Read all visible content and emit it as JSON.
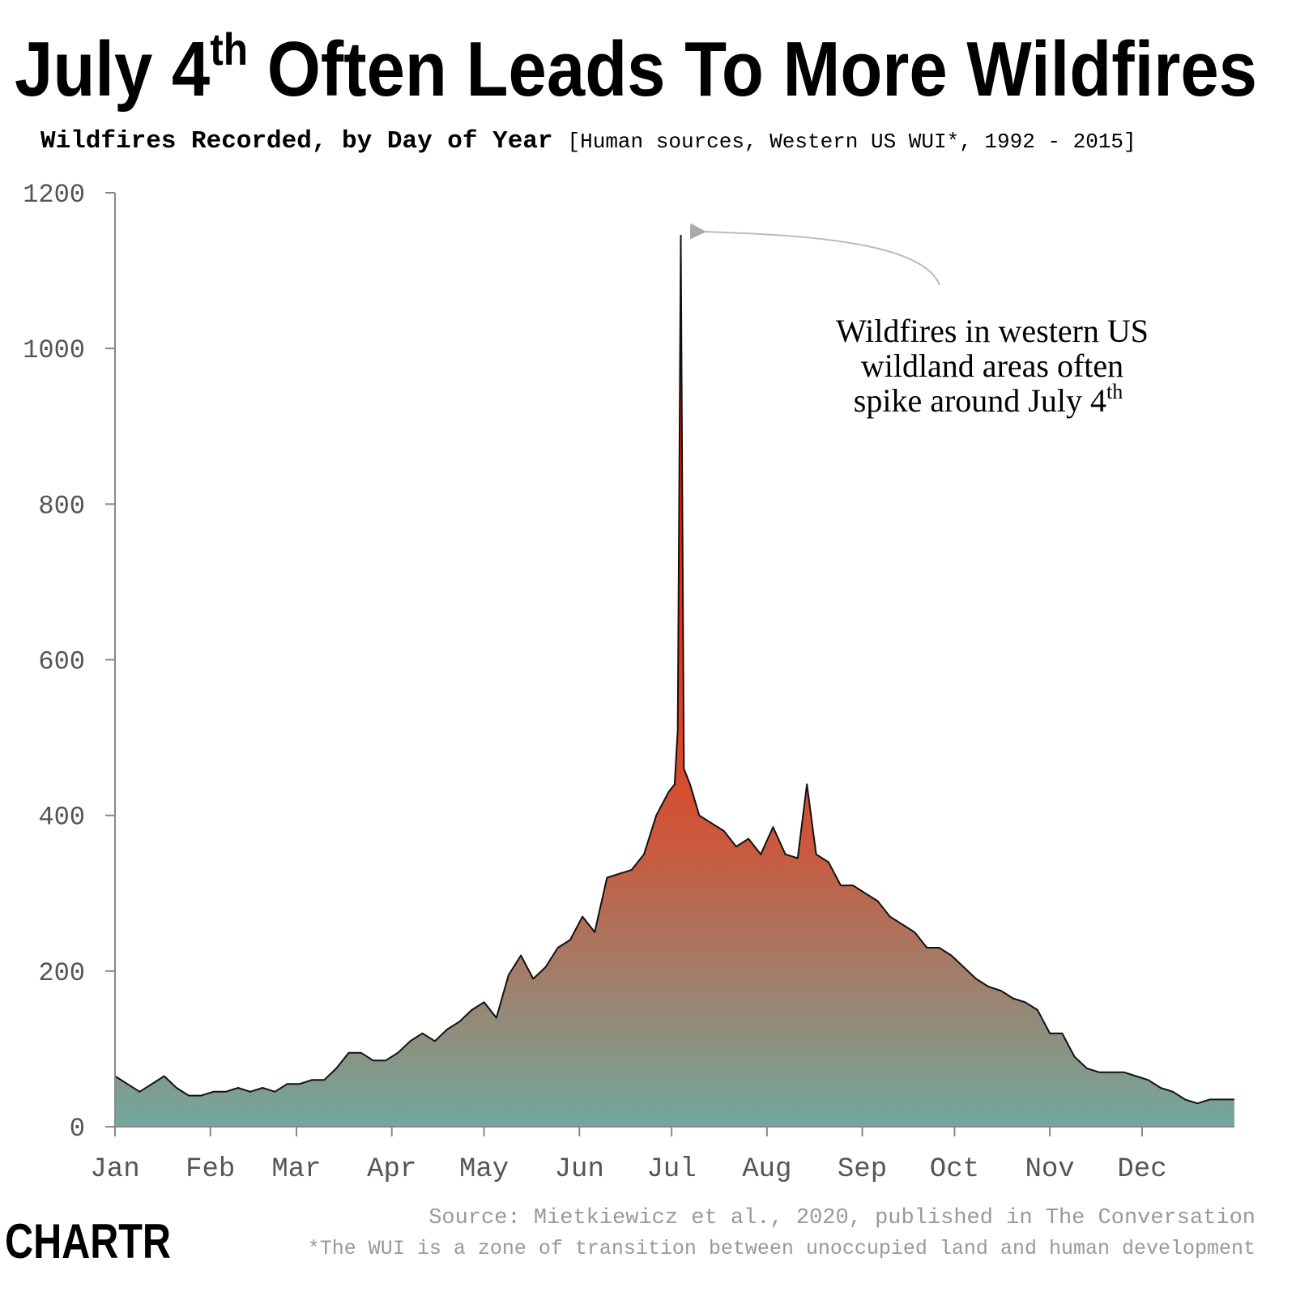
{
  "chart_data": {
    "type": "area",
    "title": [
      "July 4",
      "th",
      " Often Leads To More Wildfires"
    ],
    "subtitle": "Wildfires Recorded, by Day of Year",
    "subtitle_note": "[Human sources, Western US WUI*, 1992 - 2015]",
    "annotation": [
      "Wildfires in western US",
      "wildland areas often",
      "spike around July 4",
      "th"
    ],
    "source": "Source: Mietkiewicz et al., 2020, published in The Conversation",
    "footnote": "*The WUI is a zone of transition between unoccupied land and human development",
    "logo": "CHARTR",
    "x": [
      1,
      5,
      9,
      13,
      17,
      21,
      25,
      29,
      33,
      37,
      41,
      45,
      49,
      53,
      57,
      61,
      65,
      69,
      73,
      77,
      81,
      85,
      89,
      93,
      97,
      101,
      105,
      109,
      113,
      117,
      121,
      125,
      129,
      133,
      137,
      141,
      145,
      149,
      153,
      157,
      161,
      165,
      169,
      173,
      177,
      181,
      183,
      184,
      185,
      186,
      188,
      191,
      195,
      199,
      203,
      207,
      211,
      215,
      219,
      223,
      226,
      229,
      233,
      237,
      241,
      245,
      249,
      253,
      257,
      261,
      265,
      269,
      273,
      277,
      281,
      285,
      289,
      293,
      297,
      301,
      305,
      309,
      313,
      317,
      321,
      325,
      329,
      333,
      337,
      341,
      345,
      349,
      353,
      357,
      361,
      365
    ],
    "values": [
      65,
      55,
      45,
      55,
      65,
      50,
      40,
      40,
      45,
      45,
      50,
      45,
      50,
      45,
      55,
      55,
      60,
      60,
      75,
      95,
      95,
      85,
      85,
      95,
      110,
      120,
      110,
      125,
      135,
      150,
      160,
      140,
      195,
      220,
      190,
      205,
      230,
      240,
      270,
      250,
      320,
      325,
      330,
      350,
      400,
      430,
      440,
      510,
      1145,
      460,
      440,
      400,
      390,
      380,
      360,
      370,
      350,
      385,
      350,
      345,
      440,
      350,
      340,
      310,
      310,
      300,
      290,
      270,
      260,
      250,
      230,
      230,
      220,
      205,
      190,
      180,
      175,
      165,
      160,
      150,
      120,
      120,
      90,
      75,
      70,
      70,
      70,
      65,
      60,
      50,
      45,
      35,
      30,
      35,
      35,
      35
    ],
    "line_color": "#111111",
    "gradient": [
      "#ff2200",
      "#c95a3e",
      "#72a89d"
    ],
    "xlim": [
      1,
      365
    ],
    "xticks": [
      {
        "value": 1,
        "label": "Jan"
      },
      {
        "value": 32,
        "label": "Feb"
      },
      {
        "value": 60,
        "label": "Mar"
      },
      {
        "value": 91,
        "label": "Apr"
      },
      {
        "value": 121,
        "label": "May"
      },
      {
        "value": 152,
        "label": "Jun"
      },
      {
        "value": 182,
        "label": "Jul"
      },
      {
        "value": 213,
        "label": "Aug"
      },
      {
        "value": 244,
        "label": "Sep"
      },
      {
        "value": 274,
        "label": "Oct"
      },
      {
        "value": 305,
        "label": "Nov"
      },
      {
        "value": 335,
        "label": "Dec"
      }
    ],
    "ylim": [
      0,
      1200
    ],
    "yticks": [
      0,
      200,
      400,
      600,
      800,
      1000,
      1200
    ],
    "grid": false
  }
}
